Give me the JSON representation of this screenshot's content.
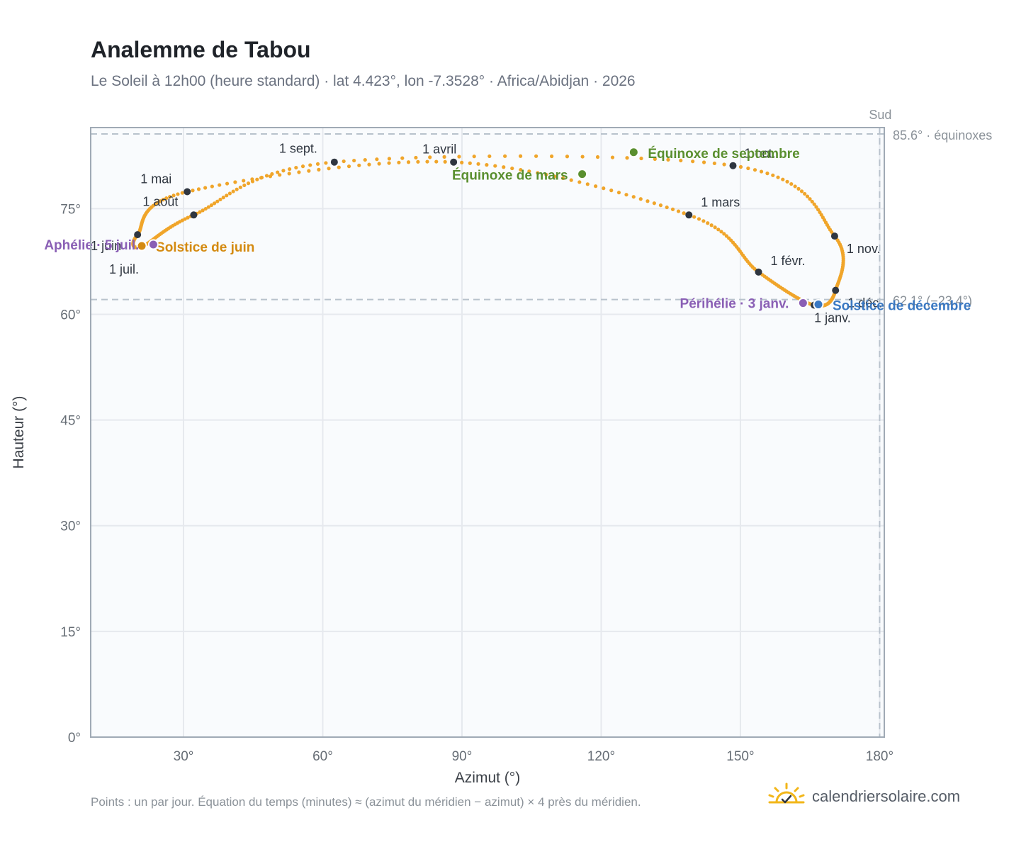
{
  "title": "Analemme de Tabou",
  "subtitle": "Le Soleil à 12h00 (heure standard) · lat 4.423°, lon -7.3528° · Africa/Abidjan · 2026",
  "footnote": "Points : un par jour. Équation du temps (minutes) ≈ (azimut du méridien − azimut) × 4 près du méridien.",
  "brand": {
    "text": "calendriersolaire.com",
    "icon": "sun-check-logo-icon"
  },
  "colors": {
    "curve": "#f0a52a",
    "month_marker": "#2f3640",
    "equinox": "#5a8f2f",
    "june_solstice": "#d48a10",
    "dec_solstice": "#3a78c2",
    "apsis": "#8a5fb5",
    "grid": "#e6e9ee",
    "plot_bg": "#f9fbfd",
    "axis": "#a0aab5"
  },
  "chart_data": {
    "type": "scatter",
    "xlabel": "Azimut (°)",
    "ylabel": "Hauteur (°)",
    "xlim": [
      10,
      181
    ],
    "ylim": [
      0,
      86.5
    ],
    "x_ticks": [
      30,
      60,
      90,
      120,
      150,
      180
    ],
    "x_tick_labels": [
      "30°",
      "60°",
      "90°",
      "120°",
      "150°",
      "180°"
    ],
    "y_ticks": [
      0,
      15,
      30,
      45,
      60,
      75
    ],
    "y_tick_labels": [
      "0°",
      "15°",
      "30°",
      "45°",
      "60°",
      "75°"
    ],
    "grid": true,
    "reference_lines": [
      {
        "axis": "y",
        "value": 85.6,
        "label": "85.6° · équinoxes"
      },
      {
        "axis": "y",
        "value": 62.1,
        "label": "62.1° (−23.4°)"
      },
      {
        "axis": "x",
        "value": 180,
        "label": "Sud"
      }
    ],
    "months": [
      {
        "label": "1 janv.",
        "az": 165.9,
        "alt": 61.3
      },
      {
        "label": "1 févr.",
        "az": 153.9,
        "alt": 66.0
      },
      {
        "label": "1 mars",
        "az": 138.9,
        "alt": 74.1
      },
      {
        "label": "1 avril",
        "az": 88.2,
        "alt": 81.6
      },
      {
        "label": "1 mai",
        "az": 30.8,
        "alt": 77.4
      },
      {
        "label": "1 juin",
        "az": 20.1,
        "alt": 71.3
      },
      {
        "label": "1 juil.",
        "az": 21.0,
        "alt": 69.6
      },
      {
        "label": "1 août",
        "az": 32.2,
        "alt": 74.1
      },
      {
        "label": "1 sept.",
        "az": 62.5,
        "alt": 81.6
      },
      {
        "label": "1 oct.",
        "az": 148.4,
        "alt": 81.1
      },
      {
        "label": "1 nov.",
        "az": 170.3,
        "alt": 71.1
      },
      {
        "label": "1 déc.",
        "az": 170.5,
        "alt": 63.4
      }
    ],
    "events": [
      {
        "label": "Équinoxe de mars",
        "az": 115.9,
        "alt": 79.9,
        "kind": "equinox"
      },
      {
        "label": "Équinoxe de septembre",
        "az": 127.0,
        "alt": 83.0,
        "kind": "equinox"
      },
      {
        "label": "Solstice de juin",
        "az": 21.0,
        "alt": 69.7,
        "kind": "june_solstice"
      },
      {
        "label": "Solstice de décembre",
        "az": 166.8,
        "alt": 61.4,
        "kind": "dec_solstice"
      },
      {
        "label": "Aphélie · 5 juil.",
        "az": 23.5,
        "alt": 69.9,
        "kind": "apsis"
      },
      {
        "label": "Périhélie · 3 janv.",
        "az": 163.5,
        "alt": 61.6,
        "kind": "apsis"
      }
    ]
  }
}
